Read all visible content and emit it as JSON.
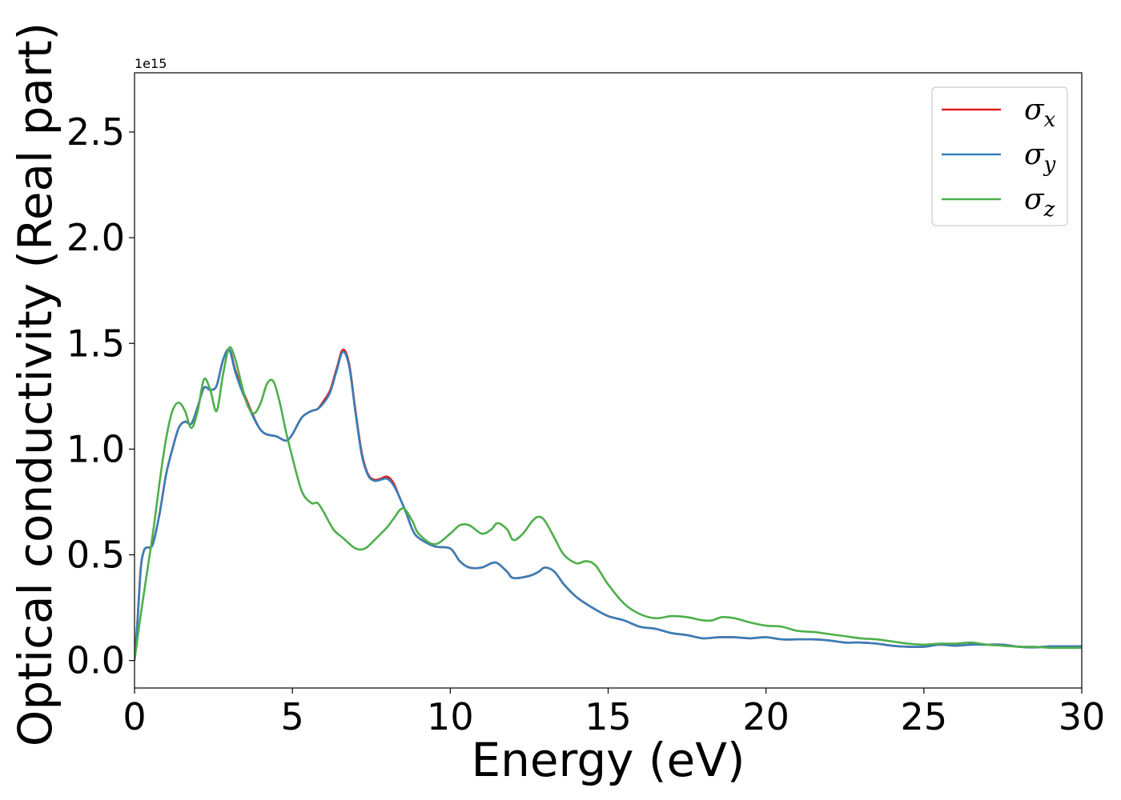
{
  "chart_data": {
    "type": "line",
    "title": "",
    "xlabel": "Energy (eV)",
    "ylabel": "Optical conductivity (Real part)",
    "y_offset_label": "1e15",
    "xlim": [
      0,
      30
    ],
    "ylim": [
      -0.13,
      2.78
    ],
    "xticks": [
      0,
      5,
      10,
      15,
      20,
      25,
      30
    ],
    "xtick_labels": [
      "0",
      "5",
      "10",
      "15",
      "20",
      "25",
      "30"
    ],
    "yticks": [
      0.0,
      0.5,
      1.0,
      1.5,
      2.0,
      2.5
    ],
    "ytick_labels": [
      "0.0",
      "0.5",
      "1.0",
      "1.5",
      "2.0",
      "2.5"
    ],
    "grid": false,
    "legend_position": "top-right",
    "series": [
      {
        "name": "σx",
        "legend_symbol": "σ",
        "legend_sub": "x",
        "color": "#e41a1c",
        "x": [
          0,
          0.1,
          0.2,
          0.3,
          0.4,
          0.5,
          0.6,
          0.8,
          1.0,
          1.2,
          1.4,
          1.6,
          1.8,
          2.0,
          2.2,
          2.4,
          2.6,
          2.8,
          3.0,
          3.2,
          3.5,
          4.0,
          4.5,
          4.8,
          5.0,
          5.3,
          5.6,
          5.8,
          6.0,
          6.2,
          6.4,
          6.6,
          6.8,
          7.0,
          7.2,
          7.4,
          7.6,
          7.8,
          8.0,
          8.2,
          8.4,
          8.6,
          8.8,
          9.0,
          9.5,
          10.0,
          10.3,
          10.6,
          11.0,
          11.3,
          11.5,
          11.8,
          12.0,
          12.5,
          12.8,
          13.0,
          13.3,
          13.6,
          14.0,
          14.5,
          15.0,
          15.5,
          16.0,
          16.5,
          17.0,
          17.5,
          18.0,
          18.5,
          19.0,
          19.5,
          20.0,
          20.5,
          21.0,
          21.5,
          22.0,
          22.5,
          23.0,
          23.5,
          24.0,
          24.5,
          25.0,
          25.5,
          26.0,
          26.5,
          27.0,
          27.5,
          28.0,
          28.5,
          29.0,
          29.5,
          30.0
        ],
        "y": [
          0,
          0.2,
          0.44,
          0.52,
          0.535,
          0.535,
          0.56,
          0.7,
          0.88,
          1.0,
          1.1,
          1.13,
          1.12,
          1.2,
          1.29,
          1.28,
          1.3,
          1.42,
          1.47,
          1.37,
          1.25,
          1.09,
          1.06,
          1.04,
          1.07,
          1.15,
          1.18,
          1.19,
          1.23,
          1.28,
          1.38,
          1.47,
          1.4,
          1.18,
          0.98,
          0.88,
          0.855,
          0.86,
          0.87,
          0.84,
          0.77,
          0.7,
          0.62,
          0.58,
          0.54,
          0.53,
          0.47,
          0.44,
          0.44,
          0.46,
          0.46,
          0.42,
          0.39,
          0.4,
          0.42,
          0.44,
          0.42,
          0.36,
          0.3,
          0.25,
          0.21,
          0.19,
          0.16,
          0.15,
          0.13,
          0.12,
          0.105,
          0.11,
          0.11,
          0.105,
          0.11,
          0.1,
          0.1,
          0.1,
          0.095,
          0.085,
          0.085,
          0.08,
          0.07,
          0.065,
          0.065,
          0.075,
          0.07,
          0.075,
          0.075,
          0.075,
          0.065,
          0.062,
          0.067,
          0.067,
          0.067
        ]
      },
      {
        "name": "σy",
        "legend_symbol": "σ",
        "legend_sub": "y",
        "color": "#377eb8",
        "x": [
          0,
          0.1,
          0.2,
          0.3,
          0.4,
          0.5,
          0.6,
          0.8,
          1.0,
          1.2,
          1.4,
          1.6,
          1.8,
          2.0,
          2.2,
          2.4,
          2.6,
          2.8,
          3.0,
          3.2,
          3.5,
          4.0,
          4.5,
          4.8,
          5.0,
          5.3,
          5.6,
          5.8,
          6.0,
          6.2,
          6.4,
          6.6,
          6.8,
          7.0,
          7.2,
          7.4,
          7.6,
          7.8,
          8.0,
          8.2,
          8.4,
          8.6,
          8.8,
          9.0,
          9.5,
          10.0,
          10.3,
          10.6,
          11.0,
          11.3,
          11.5,
          11.8,
          12.0,
          12.5,
          12.8,
          13.0,
          13.3,
          13.6,
          14.0,
          14.5,
          15.0,
          15.5,
          16.0,
          16.5,
          17.0,
          17.5,
          18.0,
          18.5,
          19.0,
          19.5,
          20.0,
          20.5,
          21.0,
          21.5,
          22.0,
          22.5,
          23.0,
          23.5,
          24.0,
          24.5,
          25.0,
          25.5,
          26.0,
          26.5,
          27.0,
          27.5,
          28.0,
          28.5,
          29.0,
          29.5,
          30.0
        ],
        "y": [
          0,
          0.2,
          0.44,
          0.52,
          0.535,
          0.535,
          0.56,
          0.7,
          0.88,
          1.0,
          1.1,
          1.13,
          1.12,
          1.2,
          1.29,
          1.28,
          1.3,
          1.42,
          1.47,
          1.36,
          1.24,
          1.09,
          1.06,
          1.04,
          1.07,
          1.15,
          1.18,
          1.19,
          1.22,
          1.27,
          1.37,
          1.46,
          1.39,
          1.17,
          0.97,
          0.875,
          0.85,
          0.855,
          0.86,
          0.83,
          0.77,
          0.7,
          0.62,
          0.58,
          0.54,
          0.53,
          0.47,
          0.44,
          0.44,
          0.46,
          0.46,
          0.42,
          0.39,
          0.4,
          0.42,
          0.44,
          0.42,
          0.36,
          0.3,
          0.25,
          0.21,
          0.19,
          0.16,
          0.15,
          0.13,
          0.12,
          0.105,
          0.11,
          0.11,
          0.105,
          0.11,
          0.1,
          0.1,
          0.1,
          0.095,
          0.085,
          0.085,
          0.08,
          0.07,
          0.065,
          0.065,
          0.075,
          0.07,
          0.075,
          0.075,
          0.075,
          0.065,
          0.062,
          0.067,
          0.067,
          0.067
        ]
      },
      {
        "name": "σz",
        "legend_symbol": "σ",
        "legend_sub": "z",
        "color": "#4daf4a",
        "x": [
          0,
          0.2,
          0.4,
          0.6,
          0.8,
          1.0,
          1.2,
          1.4,
          1.6,
          1.8,
          2.0,
          2.2,
          2.4,
          2.6,
          2.8,
          3.0,
          3.2,
          3.4,
          3.6,
          3.8,
          4.0,
          4.2,
          4.4,
          4.6,
          4.8,
          5.0,
          5.3,
          5.6,
          5.8,
          6.0,
          6.3,
          6.6,
          7.0,
          7.3,
          7.6,
          8.0,
          8.2,
          8.5,
          8.8,
          9.0,
          9.5,
          10.0,
          10.3,
          10.6,
          11.0,
          11.3,
          11.5,
          11.8,
          12.0,
          12.3,
          12.6,
          12.8,
          13.0,
          13.3,
          13.6,
          14.0,
          14.3,
          14.6,
          15.0,
          15.5,
          16.0,
          16.5,
          17.0,
          17.5,
          18.0,
          18.3,
          18.6,
          19.0,
          19.5,
          20.0,
          20.5,
          21.0,
          21.5,
          22.0,
          22.5,
          23.0,
          23.5,
          24.0,
          24.5,
          25.0,
          25.5,
          26.0,
          26.5,
          27.0,
          27.5,
          28.0,
          28.5,
          29.0,
          29.5,
          30.0
        ],
        "y": [
          0,
          0.22,
          0.42,
          0.62,
          0.85,
          1.05,
          1.18,
          1.22,
          1.18,
          1.1,
          1.18,
          1.33,
          1.28,
          1.18,
          1.35,
          1.48,
          1.42,
          1.3,
          1.2,
          1.17,
          1.22,
          1.31,
          1.32,
          1.22,
          1.08,
          0.96,
          0.8,
          0.745,
          0.745,
          0.7,
          0.62,
          0.58,
          0.53,
          0.53,
          0.57,
          0.63,
          0.67,
          0.72,
          0.66,
          0.6,
          0.55,
          0.6,
          0.64,
          0.64,
          0.6,
          0.62,
          0.65,
          0.62,
          0.57,
          0.6,
          0.66,
          0.68,
          0.66,
          0.58,
          0.5,
          0.46,
          0.47,
          0.45,
          0.36,
          0.27,
          0.22,
          0.2,
          0.21,
          0.205,
          0.19,
          0.19,
          0.205,
          0.2,
          0.18,
          0.165,
          0.16,
          0.14,
          0.135,
          0.125,
          0.115,
          0.105,
          0.1,
          0.09,
          0.08,
          0.075,
          0.08,
          0.08,
          0.085,
          0.075,
          0.07,
          0.065,
          0.065,
          0.06,
          0.06,
          0.06
        ]
      }
    ]
  }
}
